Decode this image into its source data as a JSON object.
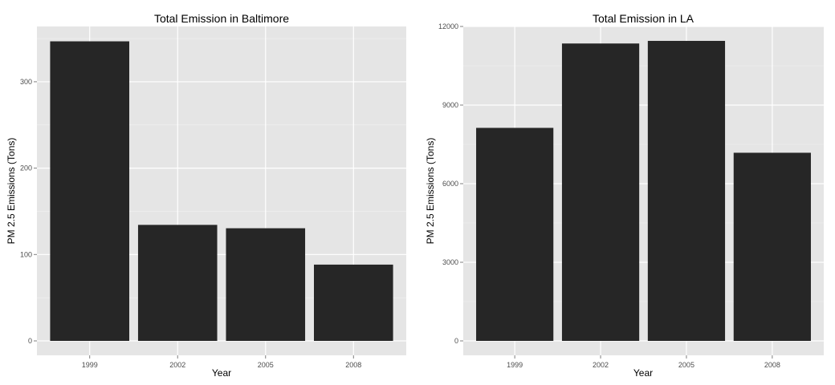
{
  "chart_data": [
    {
      "type": "bar",
      "title": "Total Emission in Baltimore",
      "xlabel": "Year",
      "ylabel": "PM 2.5 Emissions (Tons)",
      "categories": [
        "1999",
        "2002",
        "2005",
        "2008"
      ],
      "values": [
        346.8,
        134.3,
        130.4,
        88.3
      ],
      "ylim": [
        0,
        364
      ],
      "yticks": [
        0,
        100,
        200,
        300
      ],
      "ytick_labels": [
        "0",
        "100",
        "200",
        "300"
      ],
      "grid": true,
      "colors": {
        "bar": "#262626",
        "panel": "#e5e5e5",
        "grid": "#ffffff"
      }
    },
    {
      "type": "bar",
      "title": "Total Emission in LA",
      "xlabel": "Year",
      "ylabel": "PM 2.5 Emissions (Tons)",
      "categories": [
        "1999",
        "2002",
        "2005",
        "2008"
      ],
      "values": [
        8130,
        11350,
        11450,
        7180
      ],
      "ylim": [
        0,
        12000
      ],
      "yticks": [
        0,
        3000,
        6000,
        9000,
        12000
      ],
      "ytick_labels": [
        "0",
        "3000",
        "6000",
        "9000",
        "12000"
      ],
      "grid": true,
      "colors": {
        "bar": "#262626",
        "panel": "#e5e5e5",
        "grid": "#ffffff"
      }
    }
  ]
}
